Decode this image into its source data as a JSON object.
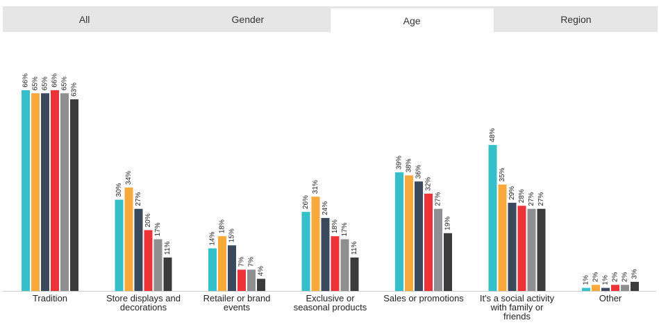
{
  "tabs": {
    "items": [
      {
        "label": "All",
        "active": false
      },
      {
        "label": "Gender",
        "active": false
      },
      {
        "label": "Age",
        "active": true
      },
      {
        "label": "Region",
        "active": false
      }
    ]
  },
  "chart_data": {
    "type": "bar",
    "categories": [
      [
        "Tradition"
      ],
      [
        "Store displays and",
        "decorations"
      ],
      [
        "Retailer or brand",
        "events"
      ],
      [
        "Exclusive or",
        "seasonal products"
      ],
      [
        "Sales or promotions"
      ],
      [
        "It's a social activity",
        "with family or",
        "friends"
      ],
      [
        "Other"
      ]
    ],
    "series": [
      {
        "color": "#35bfc9",
        "values": [
          66,
          30,
          14,
          26,
          39,
          48,
          1
        ]
      },
      {
        "color": "#f8a93b",
        "values": [
          65,
          34,
          18,
          31,
          38,
          35,
          2
        ]
      },
      {
        "color": "#3a4a5c",
        "values": [
          65,
          27,
          15,
          24,
          36,
          29,
          1
        ]
      },
      {
        "color": "#ee3338",
        "values": [
          66,
          20,
          7,
          18,
          32,
          28,
          2
        ]
      },
      {
        "color": "#8f8f91",
        "values": [
          65,
          17,
          7,
          17,
          27,
          27,
          2
        ]
      },
      {
        "color": "#3b3b3b",
        "values": [
          63,
          11,
          4,
          11,
          19,
          27,
          3
        ]
      }
    ],
    "value_suffix": "%",
    "ylim": [
      0,
      70
    ],
    "grid": false,
    "legend": "none"
  }
}
